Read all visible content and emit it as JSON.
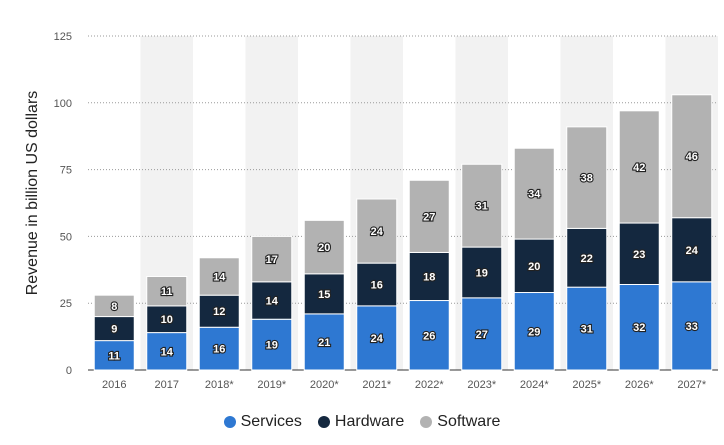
{
  "chart_data": {
    "type": "bar",
    "stacked": true,
    "title": "",
    "xlabel": "",
    "ylabel": "Revenue in billion US dollars",
    "ylim": [
      0,
      125
    ],
    "yticks": [
      0,
      25,
      50,
      75,
      100,
      125
    ],
    "grid": true,
    "legend_position": "bottom",
    "categories": [
      "2016",
      "2017",
      "2018*",
      "2019*",
      "2020*",
      "2021*",
      "2022*",
      "2023*",
      "2024*",
      "2025*",
      "2026*",
      "2027*"
    ],
    "series": [
      {
        "name": "Services",
        "color": "#2e78d2",
        "values": [
          11,
          14,
          16,
          19,
          21,
          24,
          26,
          27,
          29,
          31,
          32,
          33
        ]
      },
      {
        "name": "Hardware",
        "color": "#14283f",
        "values": [
          9,
          10,
          12,
          14,
          15,
          16,
          18,
          19,
          20,
          22,
          23,
          24
        ]
      },
      {
        "name": "Software",
        "color": "#b2b2b2",
        "values": [
          8,
          11,
          14,
          17,
          20,
          24,
          27,
          31,
          34,
          38,
          42,
          46
        ]
      }
    ]
  }
}
